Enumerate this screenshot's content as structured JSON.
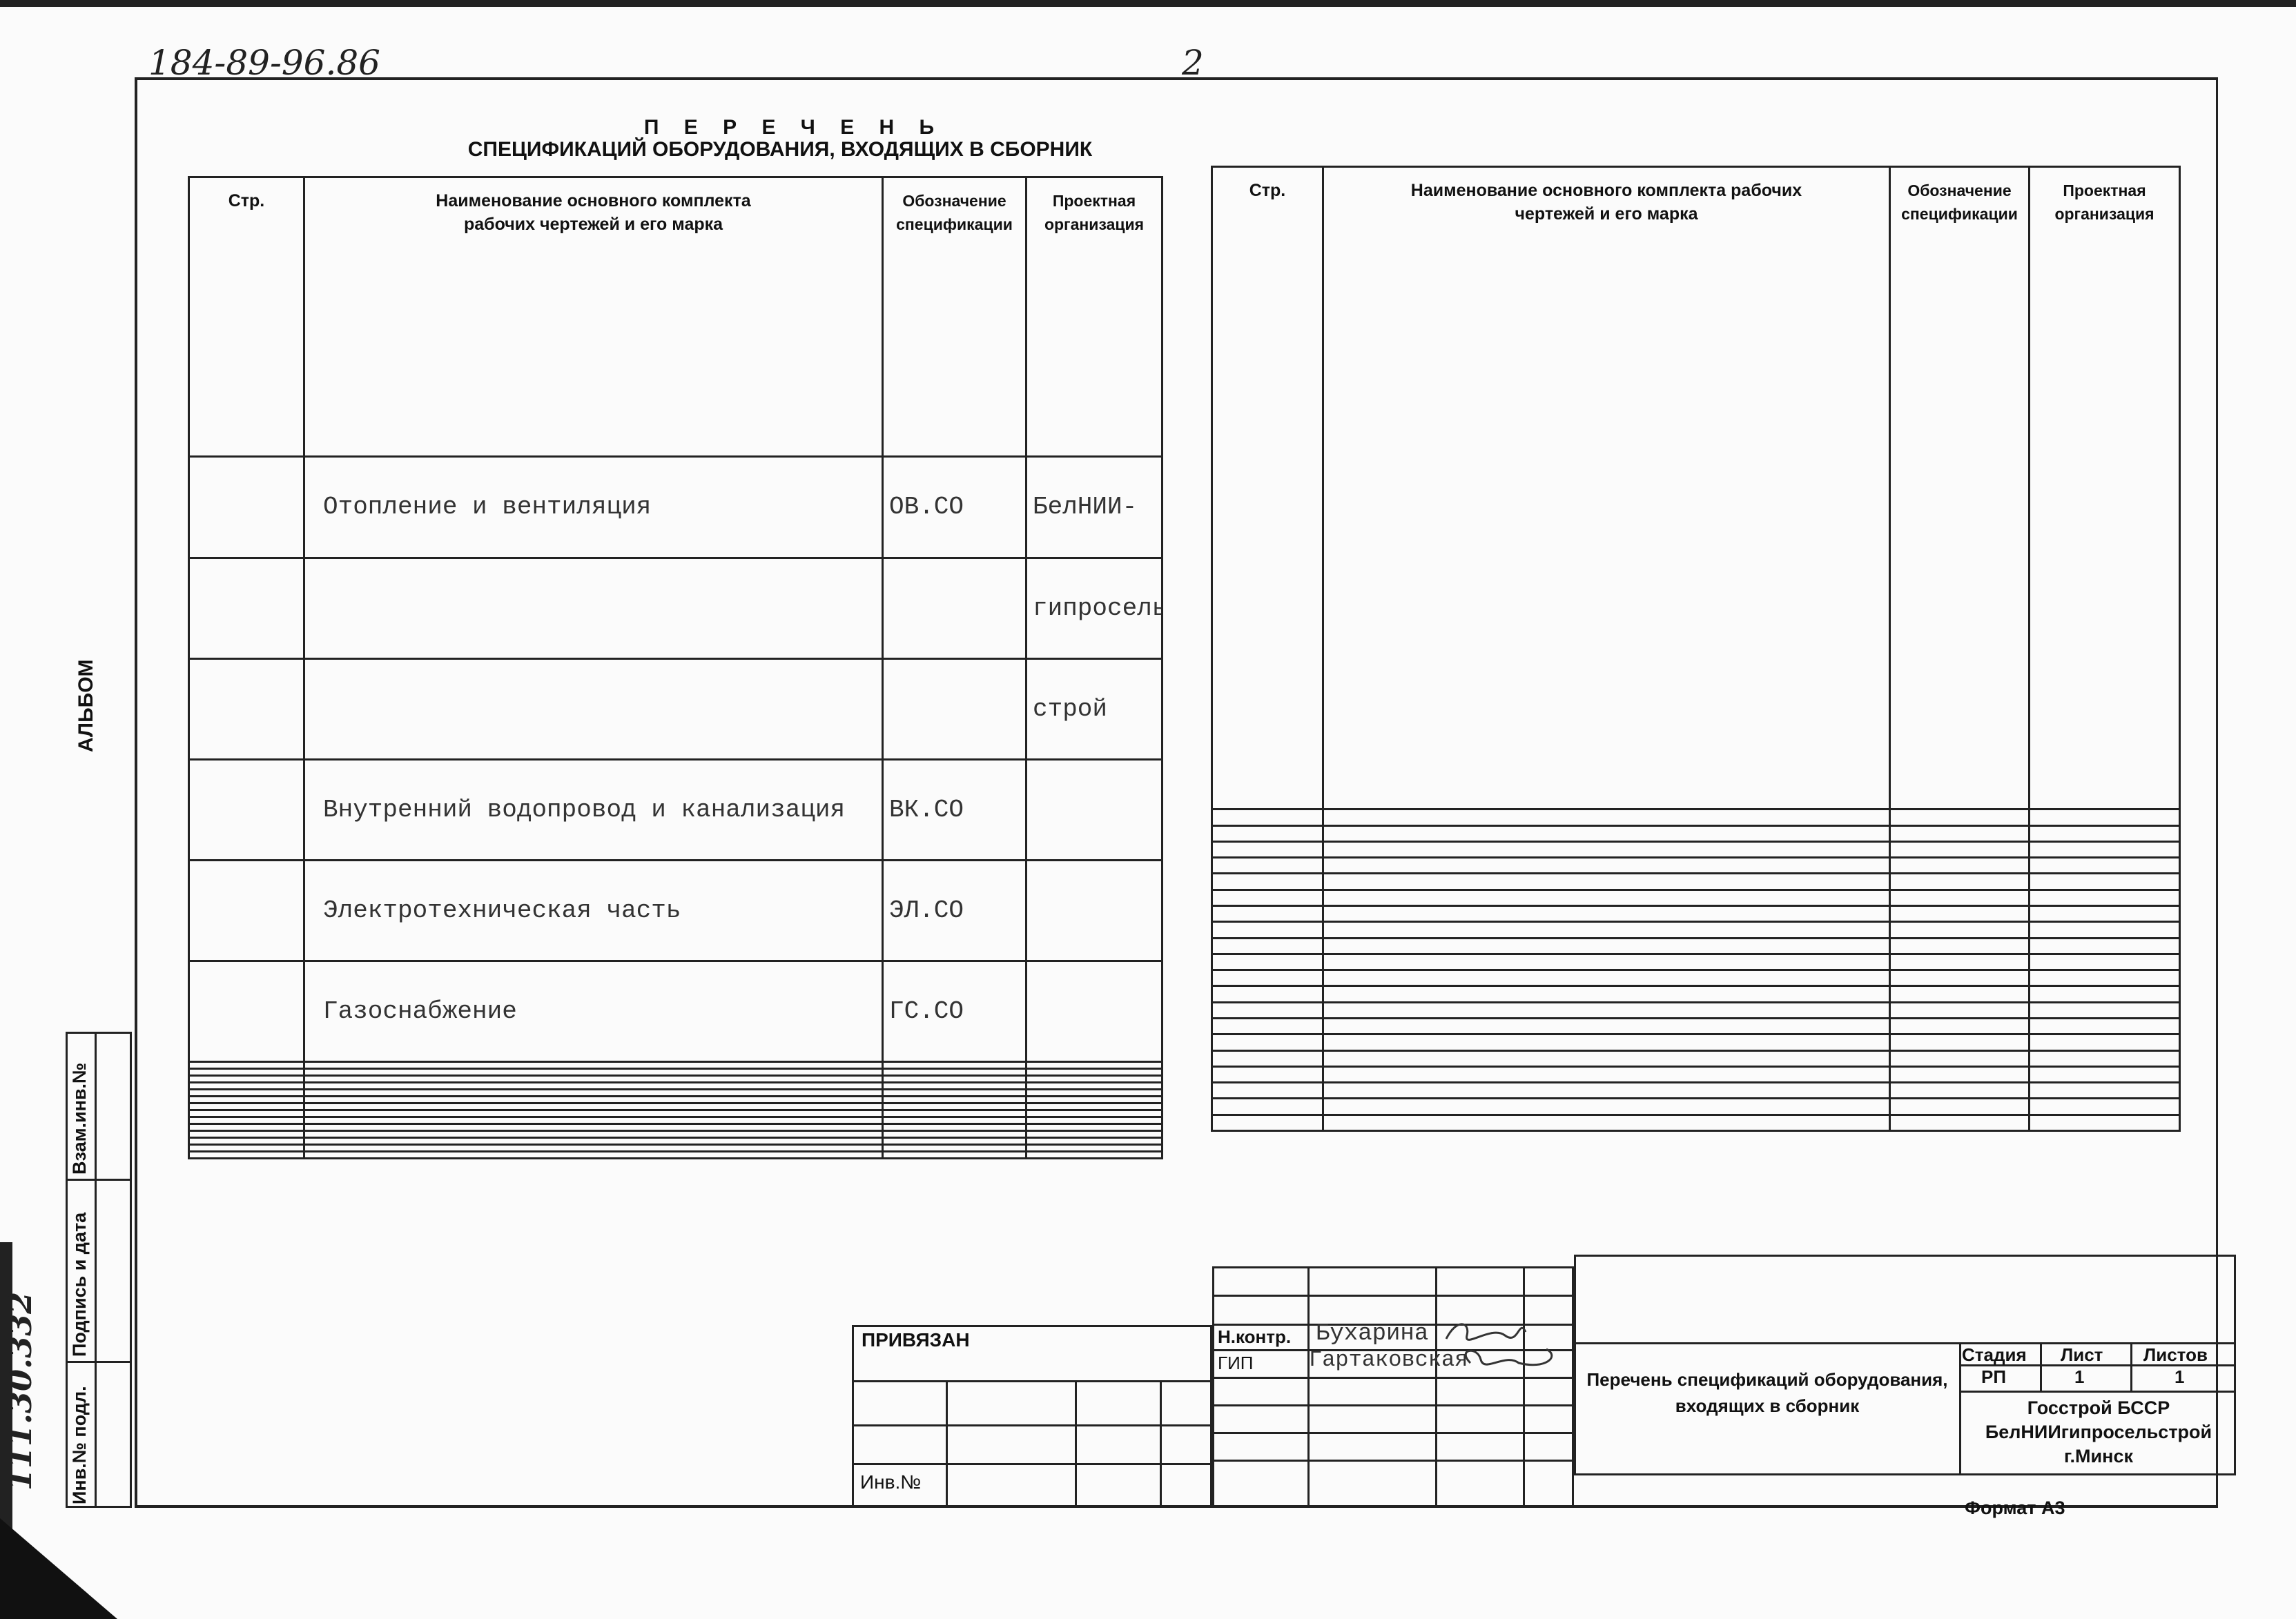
{
  "handwritten": {
    "code": "184-89-96.86",
    "page": "2",
    "side_number": "111.30.332"
  },
  "title": {
    "line1": "П Е Р Е Ч Е Н Ь",
    "line2": "СПЕЦИФИКАЦИЙ ОБОРУДОВАНИЯ, ВХОДЯЩИХ В СБОРНИК"
  },
  "table_headers": {
    "page": "Стр.",
    "name": "Наименование основного комплекта рабочих чертежей и его марка",
    "designation": "Обозначение спецификации",
    "organization": "Проектная организация"
  },
  "left_rows": [
    {
      "page": "",
      "name": "Отопление и вентиляция",
      "designation": "ОВ.СО",
      "organization": "БелНИИ-"
    },
    {
      "page": "",
      "name": "",
      "designation": "",
      "organization": "гипросель"
    },
    {
      "page": "",
      "name": "",
      "designation": "",
      "organization": "строй"
    },
    {
      "page": "",
      "name": "Внутренний водопровод и канализация",
      "designation": "ВК.СО",
      "organization": ""
    },
    {
      "page": "",
      "name": "Электротехническая часть",
      "designation": "ЭЛ.СО",
      "organization": ""
    },
    {
      "page": "",
      "name": "Газоснабжение",
      "designation": "ГС.СО",
      "organization": ""
    }
  ],
  "side_stamp": {
    "album": "АЛЬБОМ",
    "replace_inv": "Взам.инв.№",
    "sign_date": "Подпись и дата",
    "inv_orig": "Инв.№ подл."
  },
  "title_block": {
    "attached": "ПРИВЯЗАН",
    "inv_no": "Инв.№",
    "norm_control_label": "Н.контр.",
    "norm_control_name": "Бухарина",
    "chief_label": "ГИП",
    "chief_name": "Гартаковская",
    "doc_title": "Перечень спецификаций оборудования, входящих в сборник",
    "stage_label": "Стадия",
    "sheet_label": "Лист",
    "sheets_label": "Листов",
    "stage": "РП",
    "sheet": "1",
    "sheets": "1",
    "org_line1": "Госстрой БССР",
    "org_line2": "БелНИИгипросельстрой",
    "org_line3": "г.Минск"
  },
  "format": "Формат А3"
}
